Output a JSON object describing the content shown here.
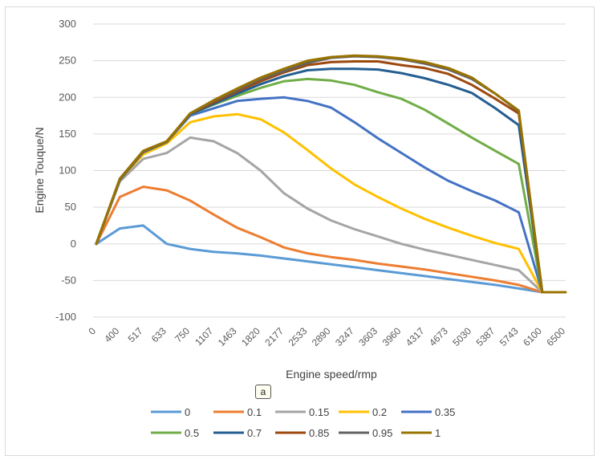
{
  "panel_label": "a",
  "chart_data": {
    "type": "line",
    "title": "",
    "xlabel": "Engine speed/rmp",
    "ylabel": "Engine Touque/N",
    "ylim": [
      -100,
      300
    ],
    "yticks": [
      -100,
      -50,
      0,
      50,
      100,
      150,
      200,
      250,
      300
    ],
    "grid": "horizontal",
    "legend_position": "bottom",
    "categories": [
      "0",
      "400",
      "517",
      "633",
      "750",
      "1107",
      "1463",
      "1820",
      "2177",
      "2533",
      "2890",
      "3247",
      "3603",
      "3960",
      "4317",
      "4673",
      "5030",
      "5387",
      "5743",
      "6100",
      "6500"
    ],
    "series": [
      {
        "name": "0",
        "color": "#5B9BD5",
        "values": [
          0,
          21,
          25,
          0,
          -7,
          -11,
          -13,
          -16,
          -20,
          -24,
          -28,
          -32,
          -36,
          -40,
          -44,
          -48,
          -52,
          -56,
          -61,
          -66,
          null
        ]
      },
      {
        "name": "0.1",
        "color": "#ED7D31",
        "values": [
          0,
          64,
          78,
          73,
          59,
          40,
          22,
          9,
          -5,
          -13,
          -18,
          -22,
          -27,
          -31,
          -35,
          -40,
          -45,
          -50,
          -56,
          -66,
          null
        ]
      },
      {
        "name": "0.15",
        "color": "#A5A5A5",
        "values": [
          0,
          85,
          116,
          124,
          145,
          140,
          124,
          100,
          69,
          48,
          32,
          20,
          10,
          0,
          -8,
          -15,
          -22,
          -29,
          -36,
          -66,
          null
        ]
      },
      {
        "name": "0.2",
        "color": "#FFC000",
        "values": [
          0,
          87,
          122,
          137,
          166,
          174,
          177,
          170,
          152,
          128,
          103,
          81,
          64,
          48,
          34,
          22,
          11,
          1,
          -7,
          -66,
          null
        ]
      },
      {
        "name": "0.35",
        "color": "#4472C4",
        "values": [
          0,
          87,
          125,
          139,
          175,
          185,
          195,
          198,
          200,
          195,
          186,
          166,
          144,
          124,
          104,
          86,
          72,
          59,
          43,
          -66,
          null
        ]
      },
      {
        "name": "0.5",
        "color": "#70AD47",
        "values": [
          0,
          88,
          126,
          139,
          177,
          190,
          202,
          213,
          222,
          225,
          223,
          217,
          207,
          198,
          183,
          164,
          145,
          127,
          109,
          -66,
          null
        ]
      },
      {
        "name": "0.7",
        "color": "#255E91",
        "values": [
          0,
          88,
          126,
          139,
          177,
          191,
          205,
          218,
          229,
          237,
          239,
          239,
          238,
          233,
          226,
          217,
          206,
          185,
          162,
          -66,
          null
        ]
      },
      {
        "name": "0.85",
        "color": "#9E480E",
        "values": [
          0,
          88,
          126,
          139,
          178,
          193,
          208,
          222,
          234,
          244,
          248,
          249,
          249,
          244,
          240,
          232,
          217,
          198,
          178,
          -66,
          null
        ]
      },
      {
        "name": "0.95",
        "color": "#636363",
        "values": [
          0,
          88,
          126,
          139,
          178,
          195,
          210,
          225,
          236,
          247,
          254,
          256,
          255,
          252,
          246,
          238,
          225,
          205,
          181,
          -66,
          null
        ]
      },
      {
        "name": "1",
        "color": "#997300",
        "values": [
          0,
          89,
          127,
          140,
          178,
          196,
          212,
          227,
          239,
          250,
          255,
          257,
          256,
          253,
          248,
          240,
          227,
          205,
          182,
          -66,
          -66
        ]
      }
    ]
  }
}
